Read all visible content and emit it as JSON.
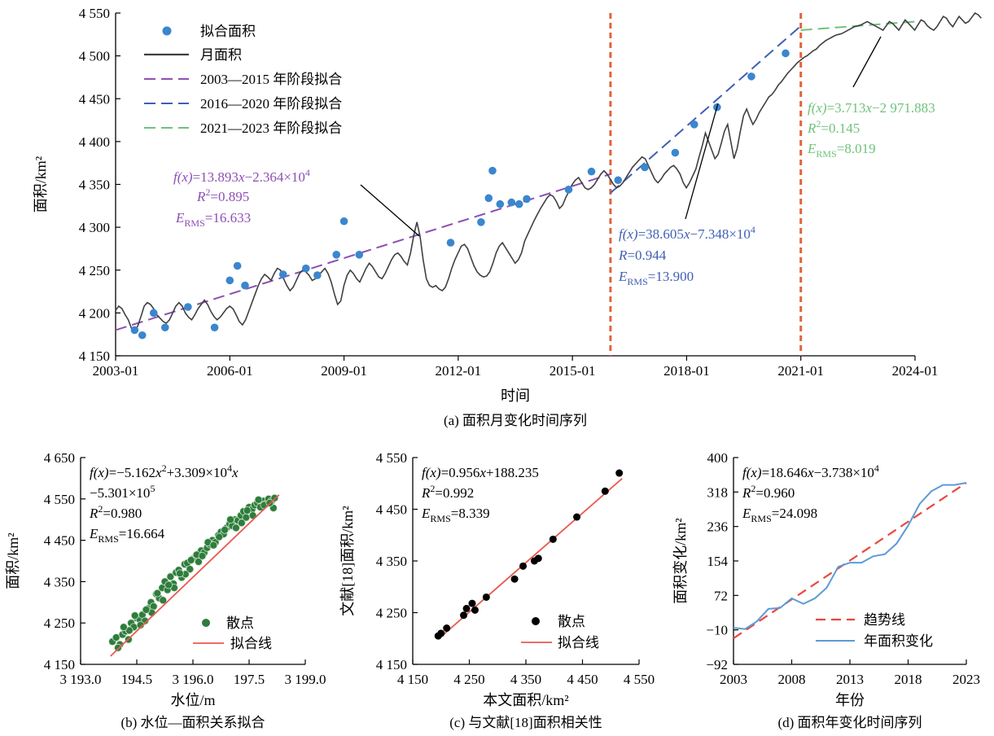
{
  "chart_data": [
    {
      "id": "a",
      "type": "line",
      "caption": "(a) 面积月变化时间序列",
      "xlabel": "时间",
      "ylabel": "面积/km²",
      "xlim": [
        2003.0,
        2024.0
      ],
      "ylim": [
        4150,
        4550
      ],
      "x_ticks": [
        "2003-01",
        "2006-01",
        "2009-01",
        "2012-01",
        "2015-01",
        "2018-01",
        "2021-01",
        "2024-01"
      ],
      "y_ticks": [
        "4 150",
        "4 200",
        "4 250",
        "4 300",
        "4 350",
        "4 400",
        "4 450",
        "4 500",
        "4 550"
      ],
      "colors": {
        "monthly": "#404040",
        "points": "#3a86cf",
        "fit1": "#8e4fb5",
        "fit2": "#3f5fb5",
        "fit3": "#6fc27a",
        "breaks": "#e0643a"
      },
      "legend": [
        "拟合面积",
        "月面积",
        "2003—2015 年阶段拟合",
        "2016—2020 年阶段拟合",
        "2021—2023 年阶段拟合"
      ],
      "breakpoints": [
        2016.0,
        2021.0
      ],
      "monthly_area": {
        "x_start": 2003.0,
        "x_step": 0.0833,
        "y": [
          4203,
          4208,
          4205,
          4198,
          4192,
          4182,
          4178,
          4185,
          4196,
          4208,
          4212,
          4210,
          4205,
          4198,
          4194,
          4190,
          4188,
          4192,
          4200,
          4208,
          4212,
          4208,
          4200,
          4195,
          4192,
          4198,
          4205,
          4210,
          4215,
          4210,
          4202,
          4196,
          4192,
          4195,
          4200,
          4205,
          4208,
          4205,
          4198,
          4190,
          4186,
          4192,
          4202,
          4212,
          4222,
          4232,
          4240,
          4245,
          4242,
          4238,
          4246,
          4252,
          4250,
          4240,
          4232,
          4226,
          4230,
          4238,
          4246,
          4250,
          4248,
          4244,
          4238,
          4240,
          4244,
          4248,
          4252,
          4246,
          4236,
          4222,
          4210,
          4214,
          4232,
          4244,
          4250,
          4246,
          4240,
          4236,
          4244,
          4252,
          4258,
          4254,
          4248,
          4242,
          4240,
          4246,
          4254,
          4262,
          4268,
          4270,
          4266,
          4260,
          4256,
          4270,
          4290,
          4306,
          4290,
          4262,
          4240,
          4232,
          4230,
          4232,
          4228,
          4226,
          4230,
          4240,
          4252,
          4262,
          4270,
          4278,
          4280,
          4275,
          4265,
          4255,
          4248,
          4244,
          4242,
          4243,
          4248,
          4258,
          4270,
          4278,
          4282,
          4276,
          4270,
          4264,
          4258,
          4262,
          4270,
          4284,
          4292,
          4300,
          4308,
          4315,
          4322,
          4328,
          4334,
          4338,
          4336,
          4330,
          4322,
          4326,
          4335,
          4342,
          4350,
          4355,
          4358,
          4352,
          4346,
          4344,
          4346,
          4350,
          4356,
          4362,
          4366,
          4362,
          4356,
          4350,
          4346,
          4348,
          4352,
          4358,
          4364,
          4370,
          4374,
          4378,
          4382,
          4380,
          4372,
          4364,
          4356,
          4352,
          4356,
          4362,
          4366,
          4370,
          4372,
          4368,
          4362,
          4352,
          4346,
          4352,
          4360,
          4368,
          4382,
          4395,
          4410,
          4400,
          4390,
          4380,
          4385,
          4398,
          4412,
          4420,
          4400,
          4380,
          4392,
          4412,
          4430,
          4438,
          4428,
          4420,
          4426,
          4434,
          4440,
          4446,
          4452,
          4455,
          4460,
          4466,
          4470,
          4475,
          4480,
          4484,
          4488,
          4492,
          4495,
          4498,
          4500,
          4503,
          4506,
          4508,
          4512,
          4515,
          4518,
          4520,
          4522,
          4524,
          4525,
          4526,
          4528,
          4530,
          4532,
          4534,
          4535,
          4536,
          4538,
          4540,
          4538,
          4536,
          4534,
          4532,
          4530,
          4535,
          4540,
          4538,
          4534,
          4530,
          4536,
          4542,
          4538,
          4534,
          4530,
          4536,
          4542,
          4540,
          4535,
          4532,
          4530,
          4534,
          4540,
          4546,
          4544,
          4538,
          4534,
          4540,
          4546,
          4542,
          4538,
          4540,
          4545,
          4550,
          4548,
          4544
        ]
      },
      "fitted_points": {
        "x": [
          2003.5,
          2003.7,
          2004.0,
          2004.3,
          2004.9,
          2005.6,
          2006.0,
          2006.2,
          2006.4,
          2007.4,
          2008.0,
          2008.3,
          2008.8,
          2009.0,
          2009.4,
          2011.8,
          2012.6,
          2012.8,
          2012.9,
          2013.1,
          2013.4,
          2013.6,
          2013.8,
          2014.9,
          2015.5,
          2016.2,
          2016.9,
          2017.7,
          2018.2,
          2018.8,
          2019.7,
          2020.6
        ],
        "y": [
          4180,
          4174,
          4200,
          4183,
          4207,
          4183,
          4238,
          4255,
          4232,
          4245,
          4252,
          4244,
          4268,
          4307,
          4268,
          4282,
          4306,
          4334,
          4366,
          4327,
          4329,
          4327,
          4333,
          4344,
          4365,
          4355,
          4370,
          4387,
          4420,
          4440,
          4476,
          4503
        ]
      },
      "fits": [
        {
          "range": [
            2003.0,
            2016.0
          ],
          "y_start": 4180,
          "y_end": 4362
        },
        {
          "range": [
            2016.0,
            2021.0
          ],
          "y_start": 4340,
          "y_end": 4535
        },
        {
          "range": [
            2021.0,
            2024.0
          ],
          "y_start": 4530,
          "y_end": 4540
        }
      ],
      "annotations": [
        {
          "parts": [
            {
              "t": "f(x)",
              "i": true
            },
            {
              "t": "=13.893"
            },
            {
              "t": "x",
              "i": true
            },
            {
              "t": "−2.364×10"
            },
            {
              "t": "4",
              "s": "sup"
            }
          ]
        },
        {
          "parts": [
            {
              "t": "R",
              "i": true
            },
            {
              "t": "2",
              "s": "sup"
            },
            {
              "t": "=0.895"
            }
          ]
        },
        {
          "parts": [
            {
              "t": "E",
              "i": true
            },
            {
              "t": "RMS",
              "s": "sub"
            },
            {
              "t": "=16.633"
            }
          ]
        },
        {
          "parts": [
            {
              "t": "f(x)",
              "i": true
            },
            {
              "t": "=38.605"
            },
            {
              "t": "x",
              "i": true
            },
            {
              "t": "−7.348×10"
            },
            {
              "t": "4",
              "s": "sup"
            }
          ]
        },
        {
          "parts": [
            {
              "t": "R",
              "i": true
            },
            {
              "t": "=0.944"
            }
          ]
        },
        {
          "parts": [
            {
              "t": "E",
              "i": true
            },
            {
              "t": "RMS",
              "s": "sub"
            },
            {
              "t": "=13.900"
            }
          ]
        },
        {
          "parts": [
            {
              "t": "f(x)",
              "i": true
            },
            {
              "t": "=3.713"
            },
            {
              "t": "x",
              "i": true
            },
            {
              "t": "−2 971.883"
            }
          ]
        },
        {
          "parts": [
            {
              "t": "R",
              "i": true
            },
            {
              "t": "2",
              "s": "sup"
            },
            {
              "t": "=0.145"
            }
          ]
        },
        {
          "parts": [
            {
              "t": "E",
              "i": true
            },
            {
              "t": "RMS",
              "s": "sub"
            },
            {
              "t": "=8.019"
            }
          ]
        }
      ]
    },
    {
      "id": "b",
      "type": "scatter",
      "caption": "(b) 水位—面积关系拟合",
      "xlabel": "水位/m",
      "ylabel": "面积/km²",
      "xlim": [
        3193.0,
        3199.0
      ],
      "ylim": [
        4150,
        4650
      ],
      "x_ticks": [
        "3 193.0",
        "194.5",
        "3 196.0",
        "197.5",
        "3 199.0"
      ],
      "y_ticks": [
        "4 150",
        "4 250",
        "4 350",
        "4 450",
        "4 550",
        "4 650"
      ],
      "colors": {
        "points": "#2e7d3c",
        "fit": "#e85a4f"
      },
      "legend": [
        "散点",
        "拟合线"
      ],
      "fit_coefficients": [
        -5.162,
        33090,
        -530100
      ],
      "fit_xrange": [
        3193.8,
        3198.3
      ],
      "points": {
        "x": [
          3193.85,
          3193.95,
          3194.05,
          3194.12,
          3194.2,
          3194.28,
          3194.35,
          3194.42,
          3194.5,
          3194.58,
          3194.65,
          3194.72,
          3194.8,
          3194.88,
          3194.95,
          3195.02,
          3195.1,
          3195.18,
          3195.25,
          3195.32,
          3195.4,
          3195.48,
          3195.55,
          3195.62,
          3195.7,
          3195.78,
          3195.85,
          3195.92,
          3196.0,
          3196.08,
          3196.15,
          3196.22,
          3196.3,
          3196.38,
          3196.45,
          3196.52,
          3196.6,
          3196.68,
          3196.75,
          3196.82,
          3196.9,
          3196.98,
          3197.05,
          3197.12,
          3197.2,
          3197.28,
          3197.35,
          3197.42,
          3197.5,
          3197.58,
          3197.65,
          3197.72,
          3197.8,
          3197.88,
          3197.95,
          3198.02,
          3198.1,
          3198.18,
          3194.0,
          3194.3,
          3194.6,
          3194.9,
          3195.2,
          3195.5,
          3195.8,
          3196.1,
          3196.4,
          3196.7,
          3197.0,
          3197.3,
          3197.6,
          3197.9,
          3198.15,
          3194.15,
          3194.45,
          3194.75,
          3195.05,
          3195.35,
          3195.65,
          3195.95,
          3196.25,
          3196.55,
          3196.85,
          3197.15,
          3197.45,
          3197.75,
          3198.05
        ],
        "y": [
          4205,
          4215,
          4198,
          4222,
          4230,
          4210,
          4250,
          4240,
          4262,
          4258,
          4270,
          4255,
          4285,
          4300,
          4290,
          4320,
          4310,
          4335,
          4350,
          4330,
          4362,
          4345,
          4372,
          4378,
          4360,
          4392,
          4395,
          4380,
          4405,
          4410,
          4398,
          4425,
          4420,
          4432,
          4440,
          4450,
          4445,
          4462,
          4470,
          4465,
          4480,
          4490,
          4485,
          4500,
          4498,
          4510,
          4520,
          4505,
          4530,
          4525,
          4535,
          4540,
          4530,
          4545,
          4538,
          4550,
          4545,
          4552,
          4190,
          4232,
          4245,
          4275,
          4305,
          4335,
          4368,
          4415,
          4445,
          4458,
          4500,
          4492,
          4510,
          4535,
          4528,
          4240,
          4268,
          4282,
          4322,
          4342,
          4370,
          4402,
          4412,
          4438,
          4475,
          4480,
          4522,
          4548,
          4540
        ]
      },
      "annotations": [
        {
          "parts": [
            {
              "t": "f(x)",
              "i": true
            },
            {
              "t": "=−5.162"
            },
            {
              "t": "x",
              "i": true
            },
            {
              "t": "2",
              "s": "sup"
            },
            {
              "t": "+3.309×10"
            },
            {
              "t": "4",
              "s": "sup"
            },
            {
              "t": "x",
              "i": true
            }
          ]
        },
        {
          "parts": [
            {
              "t": "−5.301×10"
            },
            {
              "t": "5",
              "s": "sup"
            }
          ]
        },
        {
          "parts": [
            {
              "t": "R",
              "i": true
            },
            {
              "t": "2",
              "s": "sup"
            },
            {
              "t": "=0.980"
            }
          ]
        },
        {
          "parts": [
            {
              "t": "E",
              "i": true
            },
            {
              "t": "RMS",
              "s": "sub"
            },
            {
              "t": "=16.664"
            }
          ]
        }
      ]
    },
    {
      "id": "c",
      "type": "scatter",
      "caption": "(c) 与文献[18]面积相关性",
      "xlabel": "本文面积/km²",
      "ylabel": "文献[18]面积/km²",
      "xlim": [
        4150,
        4550
      ],
      "ylim": [
        4150,
        4550
      ],
      "x_ticks": [
        "4 150",
        "4 250",
        "4 350",
        "4 450",
        "4 550"
      ],
      "y_ticks": [
        "4 150",
        "4 250",
        "4 350",
        "4 450",
        "4 550"
      ],
      "colors": {
        "points": "#000000",
        "fit": "#e85a4f"
      },
      "legend": [
        "散点",
        "拟合线"
      ],
      "fit_coefficients": [
        0.956,
        188.235
      ],
      "fit_xrange": [
        4195,
        4520
      ],
      "points": {
        "x": [
          4195,
          4200,
          4210,
          4240,
          4245,
          4255,
          4260,
          4280,
          4330,
          4345,
          4365,
          4372,
          4398,
          4440,
          4490,
          4515
        ],
        "y": [
          4205,
          4210,
          4220,
          4245,
          4258,
          4268,
          4255,
          4280,
          4315,
          4340,
          4350,
          4355,
          4392,
          4435,
          4485,
          4520
        ]
      },
      "annotations": [
        {
          "parts": [
            {
              "t": "f(x)",
              "i": true
            },
            {
              "t": "=0.956"
            },
            {
              "t": "x",
              "i": true
            },
            {
              "t": "+188.235"
            }
          ]
        },
        {
          "parts": [
            {
              "t": "R",
              "i": true
            },
            {
              "t": "2",
              "s": "sup"
            },
            {
              "t": "=0.992"
            }
          ]
        },
        {
          "parts": [
            {
              "t": "E",
              "i": true
            },
            {
              "t": "RMS",
              "s": "sub"
            },
            {
              "t": "=8.339"
            }
          ]
        }
      ]
    },
    {
      "id": "d",
      "type": "line",
      "caption": "(d) 面积年变化时间序列",
      "xlabel": "年份",
      "ylabel": "面积变化/km²",
      "xlim": [
        2003,
        2023
      ],
      "ylim": [
        -92,
        400
      ],
      "x_ticks": [
        "2003",
        "2008",
        "2013",
        "2018",
        "2023"
      ],
      "y_ticks": [
        "−92",
        "−10",
        "72",
        "154",
        "236",
        "318",
        "400"
      ],
      "colors": {
        "annual": "#5b9bd5",
        "trend": "#e8473f"
      },
      "legend": [
        "趋势线",
        "年面积变化"
      ],
      "annual_change": {
        "x": [
          2003,
          2004,
          2005,
          2006,
          2007,
          2008,
          2009,
          2010,
          2011,
          2012,
          2013,
          2014,
          2015,
          2016,
          2017,
          2018,
          2019,
          2020,
          2021,
          2022,
          2023
        ],
        "y": [
          -5,
          -8,
          10,
          40,
          42,
          65,
          52,
          65,
          90,
          140,
          150,
          150,
          165,
          170,
          195,
          238,
          290,
          320,
          335,
          335,
          340
        ]
      },
      "trend": {
        "x": [
          2003,
          2023
        ],
        "y": [
          -30,
          340
        ]
      },
      "annotations": [
        {
          "parts": [
            {
              "t": "f(x)",
              "i": true
            },
            {
              "t": "=18.646"
            },
            {
              "t": "x",
              "i": true
            },
            {
              "t": "−3.738×10"
            },
            {
              "t": "4",
              "s": "sup"
            }
          ]
        },
        {
          "parts": [
            {
              "t": "R",
              "i": true
            },
            {
              "t": "2",
              "s": "sup"
            },
            {
              "t": "=0.960"
            }
          ]
        },
        {
          "parts": [
            {
              "t": "E",
              "i": true
            },
            {
              "t": "RMS",
              "s": "sub"
            },
            {
              "t": "=24.098"
            }
          ]
        }
      ]
    }
  ]
}
